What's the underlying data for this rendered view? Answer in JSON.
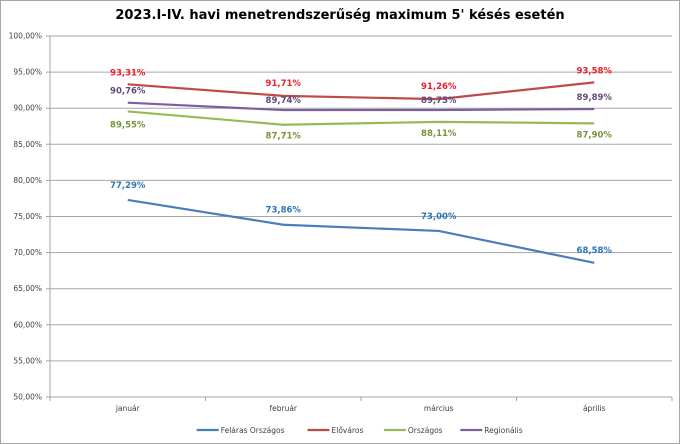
{
  "chart_data": {
    "type": "line",
    "title": "2023.I-IV. havi menetrendszerűség maximum 5' késés esetén",
    "xlabel": "",
    "ylabel": "",
    "categories": [
      "január",
      "február",
      "március",
      "április"
    ],
    "ylim": [
      50,
      100
    ],
    "ytick_step": 5,
    "ytick_labels": [
      "50,00%",
      "55,00%",
      "60,00%",
      "65,00%",
      "70,00%",
      "75,00%",
      "80,00%",
      "85,00%",
      "90,00%",
      "95,00%",
      "100,00%"
    ],
    "grid": true,
    "legend_position": "bottom",
    "series": [
      {
        "name": "Feláras Országos",
        "color": "#4a7ebb",
        "label_color": "#2e75b6",
        "values": [
          77.29,
          73.86,
          73.0,
          68.58
        ],
        "labels": [
          "77,29%",
          "73,86%",
          "73,00%",
          "68,58%"
        ]
      },
      {
        "name": "Előváros",
        "color": "#be4b48",
        "label_color": "#e8202a",
        "values": [
          93.31,
          91.71,
          91.26,
          93.58
        ],
        "labels": [
          "93,31%",
          "91,71%",
          "91,26%",
          "93,58%"
        ]
      },
      {
        "name": "Országos",
        "color": "#98b954",
        "label_color": "#77933c",
        "values": [
          89.55,
          87.71,
          88.11,
          87.9
        ],
        "labels": [
          "89,55%",
          "87,71%",
          "88,11%",
          "87,90%"
        ]
      },
      {
        "name": "Regionális",
        "color": "#7d5fa0",
        "label_color": "#604a7b",
        "values": [
          90.76,
          89.74,
          89.75,
          89.89
        ],
        "labels": [
          "90,76%",
          "89,74%",
          "89,75%",
          "89,89%"
        ]
      }
    ]
  }
}
